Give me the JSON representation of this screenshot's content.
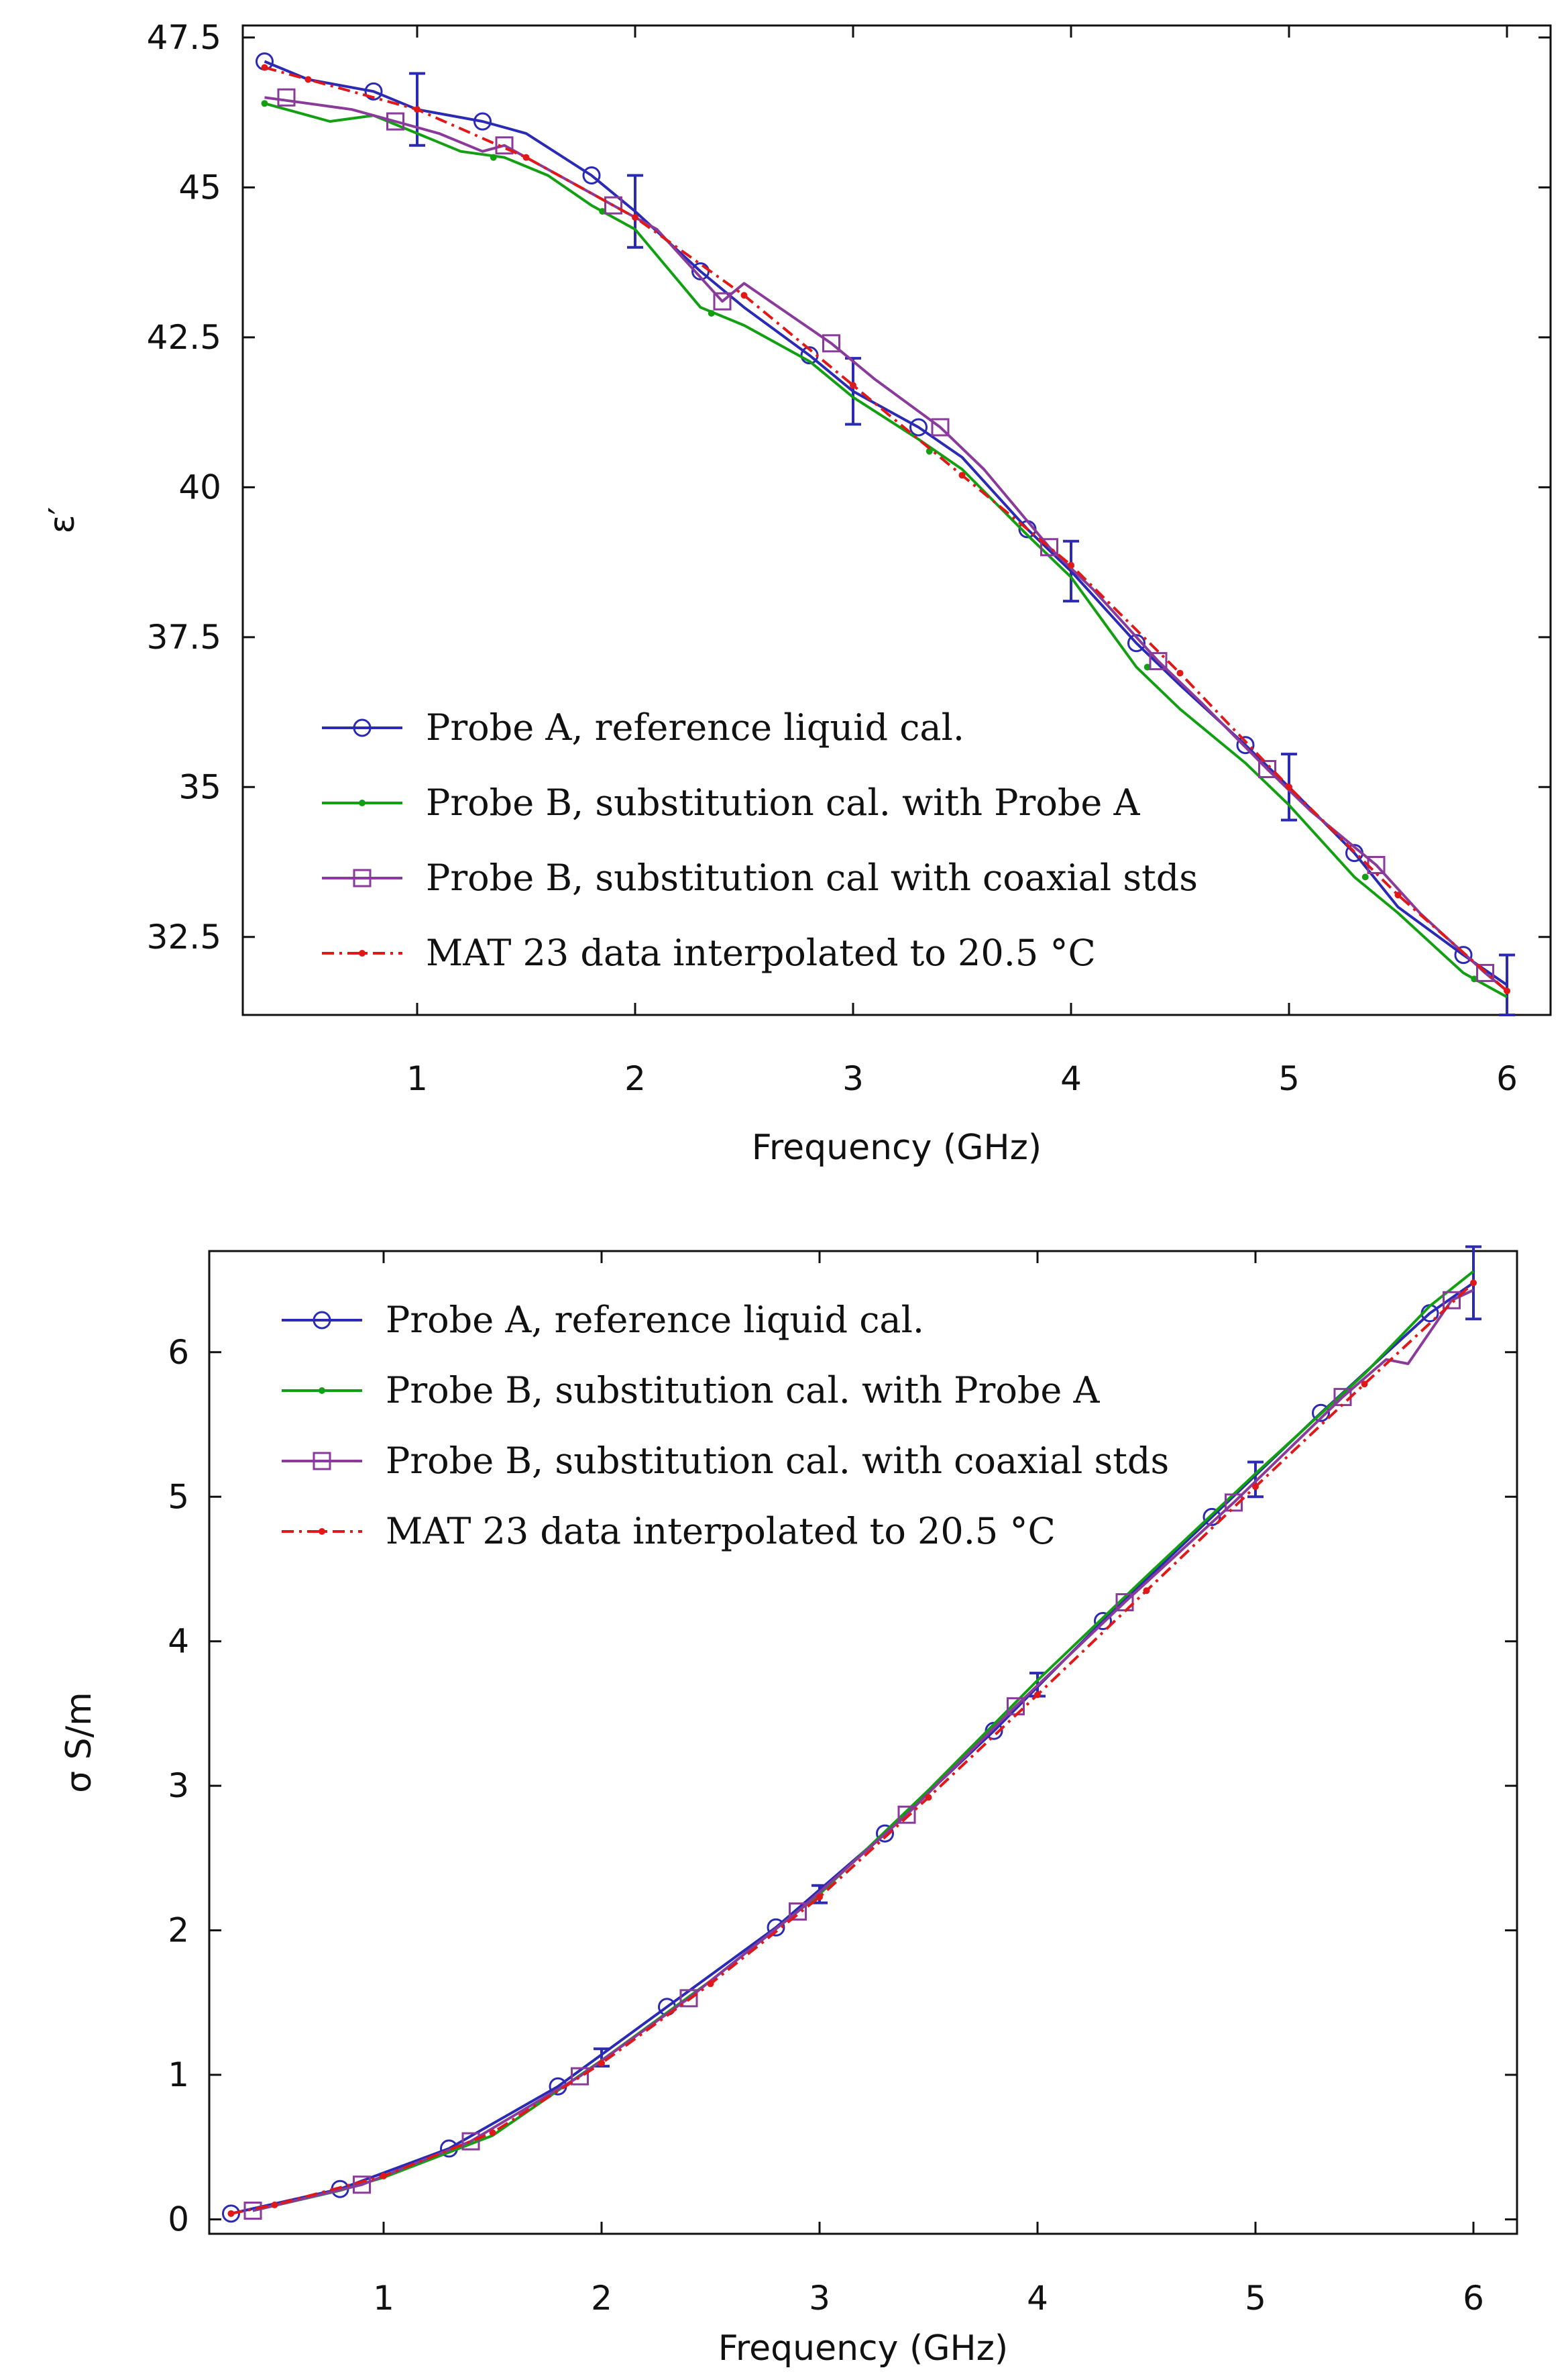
{
  "figure": {
    "colors": {
      "probeA": "#2a2ab4",
      "probeB": "#12a012",
      "coax": "#8a3a9a",
      "mat23": "#e01818"
    }
  },
  "chart_data": [
    {
      "type": "line",
      "title": "",
      "xlabel": "Frequency (GHz)",
      "ylabel": "ε′",
      "xlim": [
        0.2,
        6.2
      ],
      "ylim": [
        31.2,
        47.7
      ],
      "xticks": [
        1,
        2,
        3,
        4,
        5,
        6
      ],
      "xtick_labels": [
        "1",
        "2",
        "3",
        "4",
        "5",
        "6"
      ],
      "yticks": [
        32.5,
        35,
        37.5,
        40,
        42.5,
        45,
        47.5
      ],
      "ytick_labels": [
        "32.5",
        "35",
        "37.5",
        "40",
        "42.5",
        "45",
        "47.5"
      ],
      "legend_position": "bottom-left",
      "series": [
        {
          "name": "Probe A, reference liquid cal.",
          "color_key": "probeA",
          "marker": "circle",
          "dash": "",
          "x": [
            0.3,
            0.5,
            0.8,
            1.0,
            1.3,
            1.5,
            1.8,
            2.0,
            2.3,
            2.5,
            2.8,
            3.0,
            3.3,
            3.5,
            3.8,
            4.0,
            4.3,
            4.5,
            4.8,
            5.0,
            5.3,
            5.5,
            5.8,
            6.0
          ],
          "y": [
            47.1,
            46.8,
            46.6,
            46.3,
            46.1,
            45.9,
            45.2,
            44.6,
            43.6,
            43.0,
            42.2,
            41.6,
            41.0,
            40.5,
            39.3,
            38.6,
            37.4,
            36.7,
            35.7,
            35.0,
            33.9,
            33.0,
            32.2,
            31.7
          ],
          "markers_x": [
            0.3,
            0.8,
            1.3,
            1.8,
            2.3,
            2.8,
            3.3,
            3.8,
            4.3,
            4.8,
            5.3,
            5.8
          ],
          "markers_y": [
            47.1,
            46.6,
            46.1,
            45.2,
            43.6,
            42.2,
            41.0,
            39.3,
            37.4,
            35.7,
            33.9,
            32.2
          ],
          "error_bars": [
            {
              "x": 1.0,
              "y": 46.3,
              "err": 0.6
            },
            {
              "x": 2.0,
              "y": 44.6,
              "err": 0.6
            },
            {
              "x": 3.0,
              "y": 41.6,
              "err": 0.55
            },
            {
              "x": 4.0,
              "y": 38.6,
              "err": 0.5
            },
            {
              "x": 5.0,
              "y": 35.0,
              "err": 0.55
            },
            {
              "x": 6.0,
              "y": 31.7,
              "err": 0.5
            }
          ]
        },
        {
          "name": "Probe B, substitution cal. with Probe A",
          "color_key": "probeB",
          "marker": "dot",
          "dash": "",
          "x": [
            0.3,
            0.5,
            0.6,
            0.8,
            1.0,
            1.2,
            1.4,
            1.6,
            1.8,
            2.0,
            2.3,
            2.5,
            2.8,
            3.0,
            3.3,
            3.5,
            3.8,
            4.0,
            4.3,
            4.5,
            4.8,
            5.0,
            5.3,
            5.5,
            5.8,
            6.0
          ],
          "y": [
            46.4,
            46.2,
            46.1,
            46.2,
            45.9,
            45.6,
            45.5,
            45.2,
            44.7,
            44.3,
            43.0,
            42.7,
            42.1,
            41.5,
            40.8,
            40.3,
            39.2,
            38.5,
            37.0,
            36.3,
            35.4,
            34.7,
            33.5,
            32.9,
            31.9,
            31.5
          ],
          "markers_x": [
            0.3,
            1.35,
            1.85,
            2.35,
            3.35,
            4.35,
            5.35,
            5.85
          ],
          "markers_y": [
            46.4,
            45.5,
            44.6,
            42.9,
            40.6,
            37.0,
            33.5,
            31.8
          ]
        },
        {
          "name": "Probe B, substitution cal with coaxial stds",
          "color_key": "coax",
          "marker": "square",
          "dash": "",
          "x": [
            0.3,
            0.5,
            0.7,
            0.9,
            1.1,
            1.3,
            1.4,
            1.6,
            1.9,
            2.1,
            2.4,
            2.5,
            2.9,
            3.1,
            3.4,
            3.6,
            3.9,
            4.1,
            4.4,
            4.6,
            4.9,
            5.1,
            5.4,
            5.6,
            5.9,
            6.0
          ],
          "y": [
            46.5,
            46.4,
            46.3,
            46.1,
            45.9,
            45.6,
            45.7,
            45.3,
            44.7,
            44.3,
            43.1,
            43.4,
            42.4,
            41.8,
            41.0,
            40.3,
            39.0,
            38.3,
            37.1,
            36.4,
            35.3,
            34.6,
            33.7,
            32.9,
            31.9,
            31.6
          ],
          "markers_x": [
            0.4,
            0.9,
            1.4,
            1.9,
            2.4,
            2.9,
            3.4,
            3.9,
            4.4,
            4.9,
            5.4,
            5.9
          ],
          "markers_y": [
            46.5,
            46.1,
            45.7,
            44.7,
            43.1,
            42.4,
            41.0,
            39.0,
            37.1,
            35.3,
            33.7,
            31.9
          ]
        },
        {
          "name": "MAT 23 data interpolated to 20.5 °C",
          "color_key": "mat23",
          "marker": "dot",
          "dash": "18,8,4,8",
          "x": [
            0.3,
            0.5,
            1.0,
            1.5,
            2.0,
            2.5,
            3.0,
            3.5,
            4.0,
            4.5,
            5.0,
            5.5,
            6.0
          ],
          "y": [
            47.0,
            46.8,
            46.3,
            45.5,
            44.5,
            43.2,
            41.7,
            40.2,
            38.7,
            36.9,
            35.0,
            33.2,
            31.6
          ],
          "markers_x": [
            0.3,
            0.5,
            1.0,
            1.5,
            2.0,
            2.5,
            3.0,
            3.5,
            4.0,
            4.5,
            5.0,
            5.5,
            6.0
          ],
          "markers_y": [
            47.0,
            46.8,
            46.3,
            45.5,
            44.5,
            43.2,
            41.7,
            40.2,
            38.7,
            36.9,
            35.0,
            33.2,
            31.6
          ]
        }
      ]
    },
    {
      "type": "line",
      "title": "",
      "xlabel": "Frequency (GHz)",
      "ylabel": "σ S/m",
      "xlim": [
        0.2,
        6.2
      ],
      "ylim": [
        -0.1,
        6.7
      ],
      "xticks": [
        1,
        2,
        3,
        4,
        5,
        6
      ],
      "xtick_labels": [
        "1",
        "2",
        "3",
        "4",
        "5",
        "6"
      ],
      "yticks": [
        0,
        1,
        2,
        3,
        4,
        5,
        6
      ],
      "ytick_labels": [
        "0",
        "1",
        "2",
        "3",
        "4",
        "5",
        "6"
      ],
      "legend_position": "top-left",
      "series": [
        {
          "name": "Probe A, reference liquid cal.",
          "color_key": "probeA",
          "marker": "circle",
          "dash": "",
          "x": [
            0.3,
            0.8,
            1.3,
            1.8,
            2.3,
            2.8,
            3.3,
            3.8,
            4.3,
            4.8,
            5.3,
            5.8,
            6.0
          ],
          "y": [
            0.04,
            0.21,
            0.49,
            0.92,
            1.47,
            2.02,
            2.67,
            3.38,
            4.14,
            4.86,
            5.58,
            6.27,
            6.48
          ],
          "markers_x": [
            0.3,
            0.8,
            1.3,
            1.8,
            2.3,
            2.8,
            3.3,
            3.8,
            4.3,
            4.8,
            5.3,
            5.8
          ],
          "markers_y": [
            0.04,
            0.21,
            0.49,
            0.92,
            1.47,
            2.02,
            2.67,
            3.38,
            4.14,
            4.86,
            5.58,
            6.27
          ],
          "error_bars": [
            {
              "x": 2.0,
              "y": 1.12,
              "err": 0.06
            },
            {
              "x": 3.0,
              "y": 2.25,
              "err": 0.06
            },
            {
              "x": 4.0,
              "y": 3.7,
              "err": 0.08
            },
            {
              "x": 5.0,
              "y": 5.12,
              "err": 0.12
            },
            {
              "x": 6.0,
              "y": 6.48,
              "err": 0.25
            }
          ]
        },
        {
          "name": "Probe B, substitution cal. with Probe A",
          "color_key": "probeB",
          "marker": "dot",
          "dash": "",
          "x": [
            0.4,
            0.8,
            1.0,
            1.5,
            2.0,
            2.5,
            3.0,
            3.5,
            4.0,
            4.5,
            5.0,
            5.5,
            5.8,
            6.0
          ],
          "y": [
            0.06,
            0.2,
            0.29,
            0.58,
            1.1,
            1.65,
            2.25,
            2.97,
            3.73,
            4.45,
            5.16,
            5.85,
            6.32,
            6.56
          ],
          "markers_x": [],
          "markers_y": []
        },
        {
          "name": "Probe B, substitution cal. with coaxial stds",
          "color_key": "coax",
          "marker": "square",
          "dash": "",
          "x": [
            0.4,
            0.9,
            1.4,
            1.9,
            2.4,
            2.9,
            3.4,
            3.9,
            4.4,
            4.9,
            5.4,
            5.6,
            5.7,
            5.9,
            6.0
          ],
          "y": [
            0.06,
            0.24,
            0.54,
            0.99,
            1.53,
            2.13,
            2.8,
            3.55,
            4.27,
            4.96,
            5.69,
            5.95,
            5.92,
            6.36,
            6.43
          ],
          "markers_x": [
            0.4,
            0.9,
            1.4,
            1.9,
            2.4,
            2.9,
            3.4,
            3.9,
            4.4,
            4.9,
            5.4,
            5.9
          ],
          "markers_y": [
            0.06,
            0.24,
            0.54,
            0.99,
            1.53,
            2.13,
            2.8,
            3.55,
            4.27,
            4.96,
            5.69,
            6.36
          ]
        },
        {
          "name": "MAT 23 data interpolated to 20.5 °C",
          "color_key": "mat23",
          "marker": "dot",
          "dash": "18,8,4,8",
          "x": [
            0.3,
            0.5,
            1.0,
            1.5,
            2.0,
            2.5,
            3.0,
            3.5,
            4.0,
            4.5,
            5.0,
            5.5,
            6.0
          ],
          "y": [
            0.04,
            0.1,
            0.3,
            0.6,
            1.08,
            1.63,
            2.23,
            2.92,
            3.63,
            4.35,
            5.07,
            5.78,
            6.48
          ],
          "markers_x": [
            0.3,
            0.5,
            1.0,
            1.5,
            2.0,
            2.5,
            3.0,
            3.5,
            4.0,
            4.5,
            5.0,
            5.5,
            6.0
          ],
          "markers_y": [
            0.04,
            0.1,
            0.3,
            0.6,
            1.08,
            1.63,
            2.23,
            2.92,
            3.63,
            4.35,
            5.07,
            5.78,
            6.48
          ]
        }
      ]
    }
  ]
}
